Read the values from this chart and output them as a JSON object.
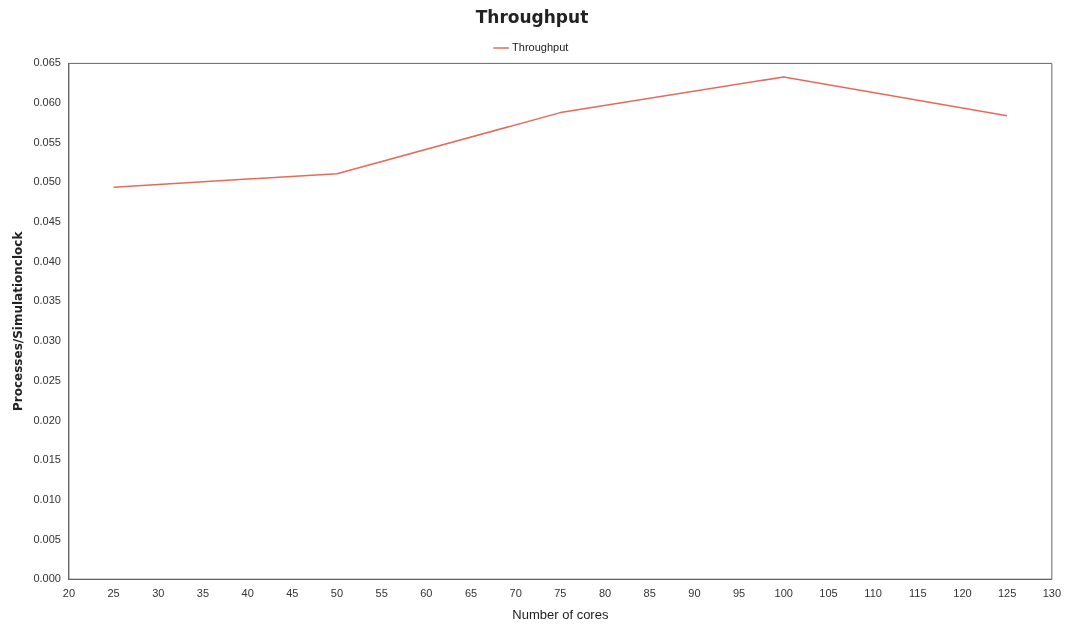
{
  "chart_data": {
    "type": "line",
    "title": "Throughput",
    "xlabel": "Number of cores",
    "ylabel": "Processes/Simulationclock",
    "x": [
      25,
      50,
      75,
      100,
      125
    ],
    "series": [
      {
        "name": "Throughput",
        "color": "#e8695a",
        "values": [
          0.0494,
          0.0511,
          0.0588,
          0.0633,
          0.0584
        ]
      }
    ],
    "xlim": [
      20,
      130
    ],
    "xticks": [
      20,
      25,
      30,
      35,
      40,
      45,
      50,
      55,
      60,
      65,
      70,
      75,
      80,
      85,
      90,
      95,
      100,
      105,
      110,
      115,
      120,
      125,
      130
    ],
    "ylim": [
      0,
      0.065
    ],
    "yticks": [
      {
        "value": 0,
        "label": "0.000"
      },
      {
        "value": 0.005,
        "label": "0.005"
      },
      {
        "value": 0.01,
        "label": "0.010"
      },
      {
        "value": 0.015,
        "label": "0.015"
      },
      {
        "value": 0.02,
        "label": "0.020"
      },
      {
        "value": 0.025,
        "label": "0.025"
      },
      {
        "value": 0.03,
        "label": "0.030"
      },
      {
        "value": 0.035,
        "label": "0.035"
      },
      {
        "value": 0.04,
        "label": "0.040"
      },
      {
        "value": 0.045,
        "label": "0.045"
      },
      {
        "value": 0.05,
        "label": "0.050"
      },
      {
        "value": 0.055,
        "label": "0.055"
      },
      {
        "value": 0.06,
        "label": "0.060"
      },
      {
        "value": 0.065,
        "label": "0.065"
      }
    ],
    "legend": "top",
    "grid": false,
    "marker": "none",
    "line_style": "solid"
  }
}
